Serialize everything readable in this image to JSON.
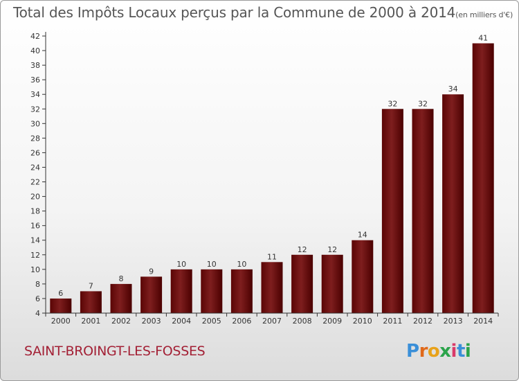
{
  "title": "Total des Impôts Locaux perçus par la Commune de 2000 à 2014",
  "unit_note": "(en milliers d'€)",
  "commune": "SAINT-BROINGT-LES-FOSSES",
  "logo": {
    "text": "Proxiti",
    "letters": [
      "P",
      "r",
      "o",
      "x",
      "i",
      "t",
      "i"
    ]
  },
  "colors": {
    "bar_dark": "#500000",
    "bar_light": "#8a2a2a",
    "commune_text": "#a32035"
  },
  "chart_data": {
    "type": "bar",
    "title": "Total des Impôts Locaux perçus par la Commune de 2000 à 2014",
    "categories": [
      "2000",
      "2001",
      "2002",
      "2003",
      "2004",
      "2005",
      "2006",
      "2007",
      "2008",
      "2009",
      "2010",
      "2011",
      "2012",
      "2013",
      "2014"
    ],
    "values": [
      6,
      7,
      8,
      9,
      10,
      10,
      10,
      11,
      12,
      12,
      14,
      32,
      32,
      34,
      41
    ],
    "yticks": [
      4,
      6,
      8,
      10,
      12,
      14,
      16,
      18,
      20,
      22,
      24,
      26,
      28,
      30,
      32,
      34,
      36,
      38,
      40,
      42
    ],
    "ylim": [
      4,
      42
    ],
    "grid": false,
    "xlabel": "",
    "ylabel": ""
  }
}
